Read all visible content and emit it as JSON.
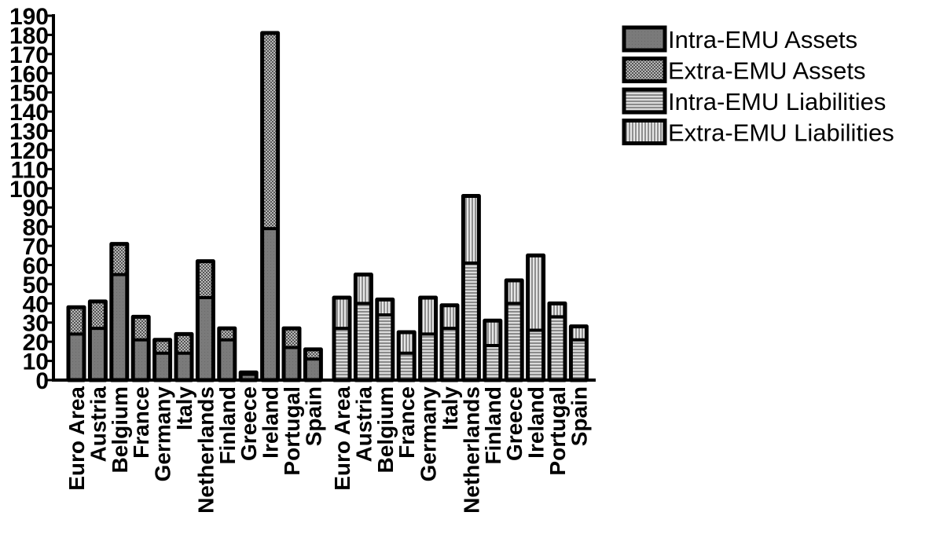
{
  "chart_data": {
    "type": "bar",
    "stacked": true,
    "title": "",
    "xlabel": "",
    "ylabel": "",
    "ylim": [
      0,
      190
    ],
    "yticks": [
      0,
      10,
      20,
      30,
      40,
      50,
      60,
      70,
      80,
      90,
      100,
      110,
      120,
      130,
      140,
      150,
      160,
      170,
      180,
      190
    ],
    "grid": false,
    "legend_position": "top-right",
    "groups": [
      {
        "categories": [
          "Euro Area",
          "Austria",
          "Belgium",
          "France",
          "Germany",
          "Italy",
          "Netherlands",
          "Finland",
          "Greece",
          "Ireland",
          "Portugal",
          "Spain"
        ],
        "series": [
          {
            "name": "Intra-EMU Assets",
            "values": [
              24,
              27,
              55,
              21,
              14,
              14,
              43,
              21,
              3,
              79,
              17,
              11
            ]
          },
          {
            "name": "Extra-EMU Assets",
            "values": [
              14,
              14,
              16,
              12,
              7,
              10,
              19,
              6,
              1,
              102,
              10,
              5
            ]
          }
        ]
      },
      {
        "categories": [
          "Euro Area",
          "Austria",
          "Belgium",
          "France",
          "Germany",
          "Italy",
          "Netherlands",
          "Finland",
          "Greece",
          "Ireland",
          "Portugal",
          "Spain"
        ],
        "series": [
          {
            "name": "Intra-EMU Liabilities",
            "values": [
              27,
              40,
              34,
              14,
              24,
              27,
              61,
              18,
              40,
              26,
              33,
              21
            ]
          },
          {
            "name": "Extra-EMU Liabilities",
            "values": [
              16,
              15,
              8,
              11,
              19,
              12,
              35,
              13,
              12,
              39,
              7,
              7
            ]
          }
        ]
      }
    ],
    "legend": [
      {
        "name": "Intra-EMU Assets",
        "color": "#7a7a7a",
        "pattern": "solid"
      },
      {
        "name": "Extra-EMU Assets",
        "color": "#9a9a9a",
        "pattern": "crosshatch"
      },
      {
        "name": "Intra-EMU Liabilities",
        "color": "#bdbdbd",
        "pattern": "horizontal-lines"
      },
      {
        "name": "Extra-EMU Liabilities",
        "color": "#cfcfcf",
        "pattern": "vertical-lines"
      }
    ]
  }
}
